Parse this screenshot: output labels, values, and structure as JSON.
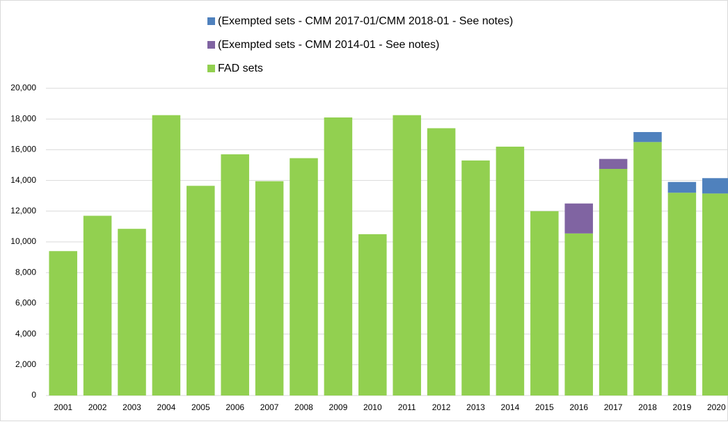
{
  "chart_data": {
    "type": "stacked-bar",
    "categories": [
      "2001",
      "2002",
      "2003",
      "2004",
      "2005",
      "2006",
      "2007",
      "2008",
      "2009",
      "2010",
      "2011",
      "2012",
      "2013",
      "2014",
      "2015",
      "2016",
      "2017",
      "2018",
      "2019",
      "2020"
    ],
    "series": [
      {
        "name": "FAD sets",
        "color": "#92d050",
        "values": [
          9400,
          11700,
          10850,
          18250,
          13650,
          15700,
          13950,
          15450,
          18100,
          10500,
          18250,
          17400,
          15300,
          16200,
          12000,
          10550,
          14750,
          16500,
          13200,
          13150
        ]
      },
      {
        "name": "(Exempted sets - CMM 2014-01 - See notes)",
        "color": "#8064a2",
        "values": [
          null,
          null,
          null,
          null,
          null,
          null,
          null,
          null,
          null,
          null,
          null,
          null,
          null,
          null,
          null,
          1950,
          650,
          null,
          null,
          null
        ]
      },
      {
        "name": "(Exempted sets - CMM 2017-01/CMM 2018-01 - See notes)",
        "color": "#4f81bd",
        "values": [
          null,
          null,
          null,
          null,
          null,
          null,
          null,
          null,
          null,
          null,
          null,
          null,
          null,
          null,
          null,
          null,
          null,
          650,
          700,
          1000
        ]
      }
    ],
    "ylim": [
      0,
      20000
    ],
    "yticks": [
      0,
      {
        "value": 2000,
        "label": "2,000"
      },
      {
        "value": 4000,
        "label": "4,000"
      },
      {
        "value": 6000,
        "label": "6,000"
      },
      {
        "value": 8000,
        "label": "8,000"
      },
      {
        "value": 10000,
        "label": "10,000"
      },
      {
        "value": 12000,
        "label": "12,000"
      },
      {
        "value": 14000,
        "label": "14,000"
      },
      {
        "value": 16000,
        "label": "16,000"
      },
      {
        "value": 18000,
        "label": "18,000"
      },
      {
        "value": 20000,
        "label": "20,000"
      }
    ],
    "grid": true
  }
}
